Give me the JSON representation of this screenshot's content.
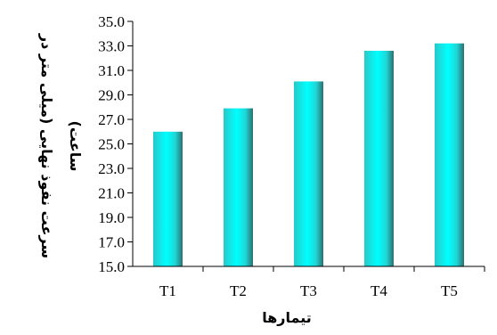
{
  "chart_data": {
    "type": "bar",
    "categories": [
      "T1",
      "T2",
      "T3",
      "T4",
      "T5"
    ],
    "values": [
      26.0,
      27.9,
      30.1,
      32.6,
      33.2
    ],
    "ylim": [
      15.0,
      35.0
    ],
    "yticks": [
      "15.0",
      "17.0",
      "19.0",
      "21.0",
      "23.0",
      "25.0",
      "27.0",
      "29.0",
      "31.0",
      "33.0",
      "35.0"
    ],
    "xlabel": "تیمارها",
    "ylabel_line1": "سرعت نفوذ نهایی (میلی متر در",
    "ylabel_line2": "ساعت)",
    "grid": false,
    "bar_color": "#00e5e5"
  }
}
